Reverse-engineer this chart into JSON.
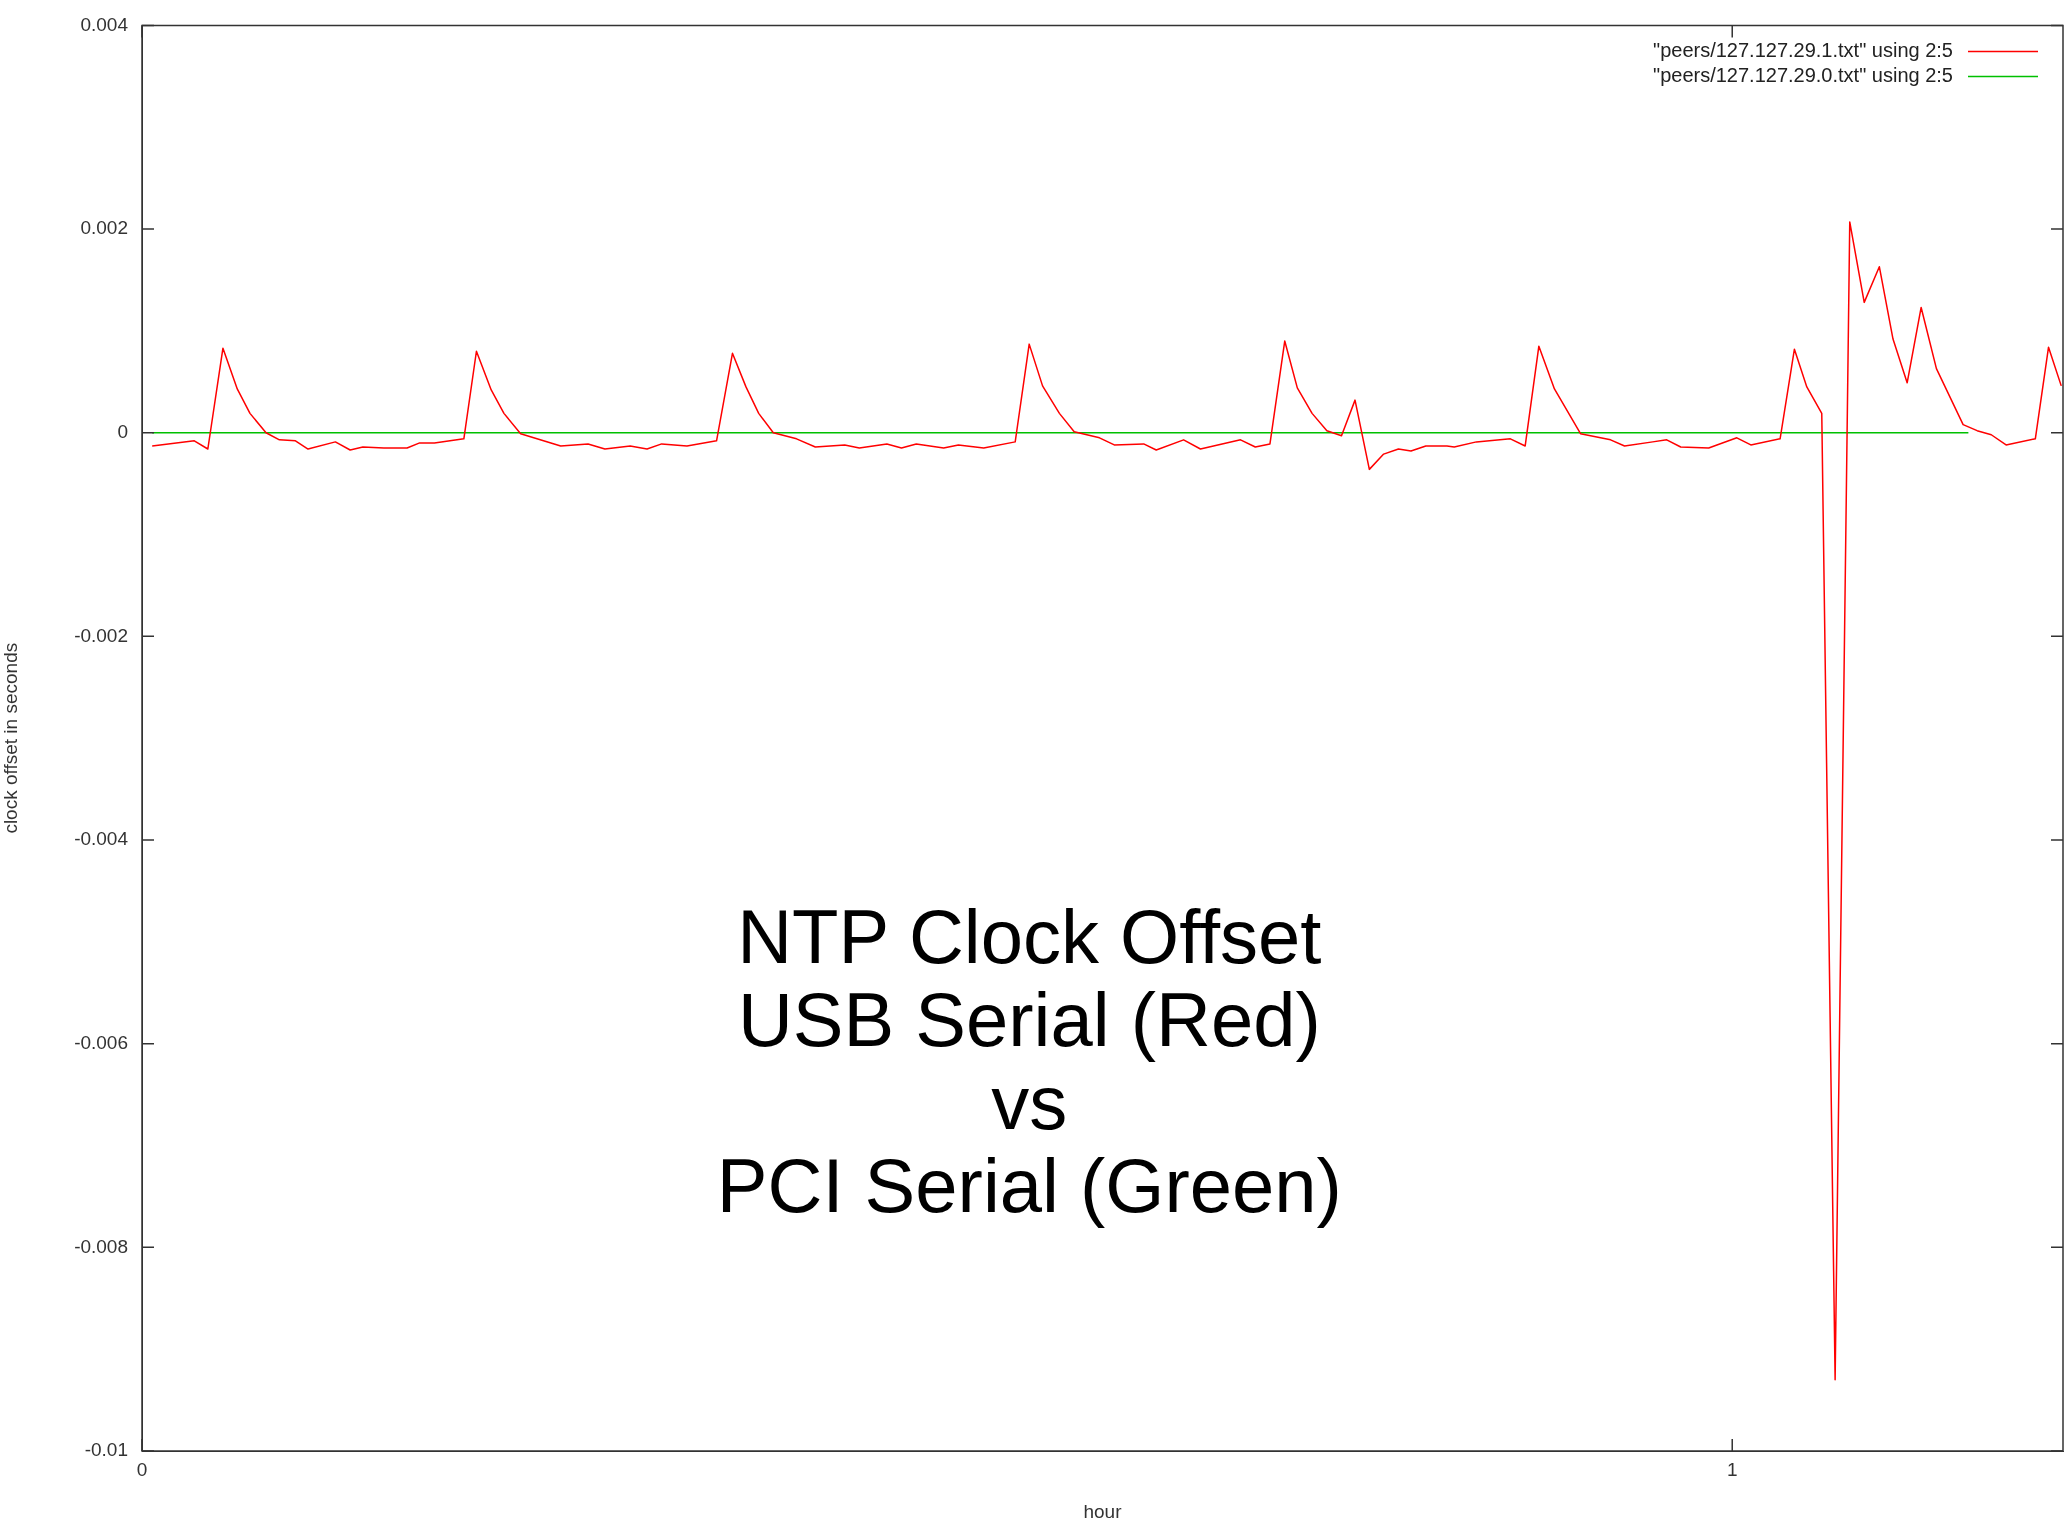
{
  "chart_data": {
    "type": "line",
    "title": "NTP Clock Offset\nUSB Serial (Red)\nvs\nPCI Serial (Green)",
    "xlabel": "hour",
    "ylabel": "clock offset in seconds",
    "xlim": [
      0,
      1.208
    ],
    "xticks": [
      0,
      1
    ],
    "ylim": [
      -0.01,
      0.004
    ],
    "yticks": [
      -0.01,
      -0.008,
      -0.006,
      -0.004,
      -0.002,
      0,
      0.002,
      0.004
    ],
    "grid": false,
    "legend": "top right",
    "marker": "none",
    "line_style": "solid",
    "series": [
      {
        "name": "\"peers/127.127.29.1.txt\" using 2:5",
        "color": "#ff0000",
        "x": [
          0.0064,
          0.0329,
          0.0414,
          0.0509,
          0.0599,
          0.0679,
          0.078,
          0.0864,
          0.0965,
          0.1044,
          0.1216,
          0.1309,
          0.1389,
          0.1521,
          0.1667,
          0.1746,
          0.1839,
          0.2024,
          0.2103,
          0.2196,
          0.2276,
          0.2381,
          0.2633,
          0.2805,
          0.2911,
          0.307,
          0.3176,
          0.3268,
          0.3427,
          0.3613,
          0.3713,
          0.3798,
          0.3878,
          0.397,
          0.4116,
          0.4234,
          0.4419,
          0.4511,
          0.4684,
          0.4776,
          0.4869,
          0.5041,
          0.5134,
          0.5293,
          0.5491,
          0.5579,
          0.5663,
          0.5769,
          0.5862,
          0.6021,
          0.6114,
          0.6299,
          0.6378,
          0.655,
          0.6656,
          0.6908,
          0.7001,
          0.7093,
          0.7186,
          0.7265,
          0.7358,
          0.7451,
          0.7543,
          0.7628,
          0.7718,
          0.7808,
          0.7901,
          0.798,
          0.8073,
          0.8206,
          0.8252,
          0.8391,
          0.8605,
          0.8698,
          0.8784,
          0.8882,
          0.9046,
          0.9235,
          0.9323,
          0.95,
          0.9588,
          0.9676,
          0.9852,
          1.0029,
          1.0117,
          1.0301,
          1.0391,
          1.0469,
          1.0563,
          1.0647,
          1.0739,
          1.083,
          1.0925,
          1.1011,
          1.11,
          1.1188,
          1.1284,
          1.1452,
          1.154,
          1.1629,
          1.1722,
          1.1906,
          1.1989,
          1.2069
        ],
        "values": [
          -0.00013,
          -8e-05,
          -0.00016,
          0.00083,
          0.00043,
          0.00019,
          0,
          -7e-05,
          -8e-05,
          -0.00016,
          -9e-05,
          -0.00017,
          -0.00014,
          -0.00015,
          -0.00015,
          -0.0001,
          -0.0001,
          -6e-05,
          0.0008,
          0.00042,
          0.00019,
          -1e-05,
          -0.00013,
          -0.00011,
          -0.00016,
          -0.00013,
          -0.00016,
          -0.00011,
          -0.00013,
          -8e-05,
          0.00078,
          0.00045,
          0.00019,
          0,
          -6e-05,
          -0.00014,
          -0.00012,
          -0.00015,
          -0.00011,
          -0.00015,
          -0.00011,
          -0.00015,
          -0.00012,
          -0.00015,
          -9e-05,
          0.00087,
          0.00046,
          0.00019,
          1e-05,
          -5e-05,
          -0.00012,
          -0.00011,
          -0.00017,
          -7e-05,
          -0.00016,
          -7e-05,
          -0.00014,
          -0.00011,
          0.0009,
          0.00044,
          0.00019,
          2e-05,
          -3e-05,
          0.00032,
          -0.00036,
          -0.00021,
          -0.00016,
          -0.00018,
          -0.00013,
          -0.00013,
          -0.00014,
          -9e-05,
          -6e-05,
          -0.00013,
          0.00085,
          0.00043,
          -1e-05,
          -7e-05,
          -0.00013,
          -9e-05,
          -7e-05,
          -0.00014,
          -0.00015,
          -5e-05,
          -0.00012,
          -6e-05,
          0.00082,
          0.00045,
          0.00019,
          -0.0093,
          0.00207,
          0.00128,
          0.00163,
          0.00092,
          0.00049,
          0.00123,
          0.00063,
          8e-05,
          2e-05,
          -2e-05,
          -0.00012,
          -6e-05,
          0.00084,
          0.00046
        ]
      },
      {
        "name": "\"peers/127.127.29.0.txt\" using 2:5",
        "color": "#00c000",
        "x": [
          0.0064,
          0.2,
          0.4,
          0.6,
          0.8,
          1.0,
          1.1485
        ],
        "values": [
          0,
          0,
          0,
          0,
          0,
          0,
          0
        ]
      }
    ]
  }
}
